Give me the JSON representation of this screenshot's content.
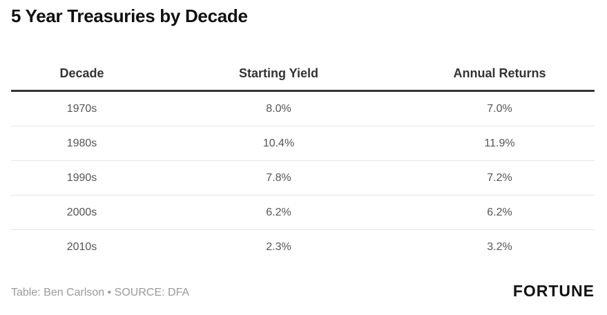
{
  "title": "5 Year Treasuries by Decade",
  "chart_data": {
    "type": "table",
    "columns": [
      "Decade",
      "Starting Yield",
      "Annual Returns"
    ],
    "rows": [
      [
        "1970s",
        "8.0%",
        "7.0%"
      ],
      [
        "1980s",
        "10.4%",
        "11.9%"
      ],
      [
        "1990s",
        "7.8%",
        "7.2%"
      ],
      [
        "2000s",
        "6.2%",
        "6.2%"
      ],
      [
        "2010s",
        "2.3%",
        "3.2%"
      ]
    ]
  },
  "footer": {
    "source": "Table: Ben Carlson • SOURCE: DFA",
    "logo": "FORTUNE"
  }
}
